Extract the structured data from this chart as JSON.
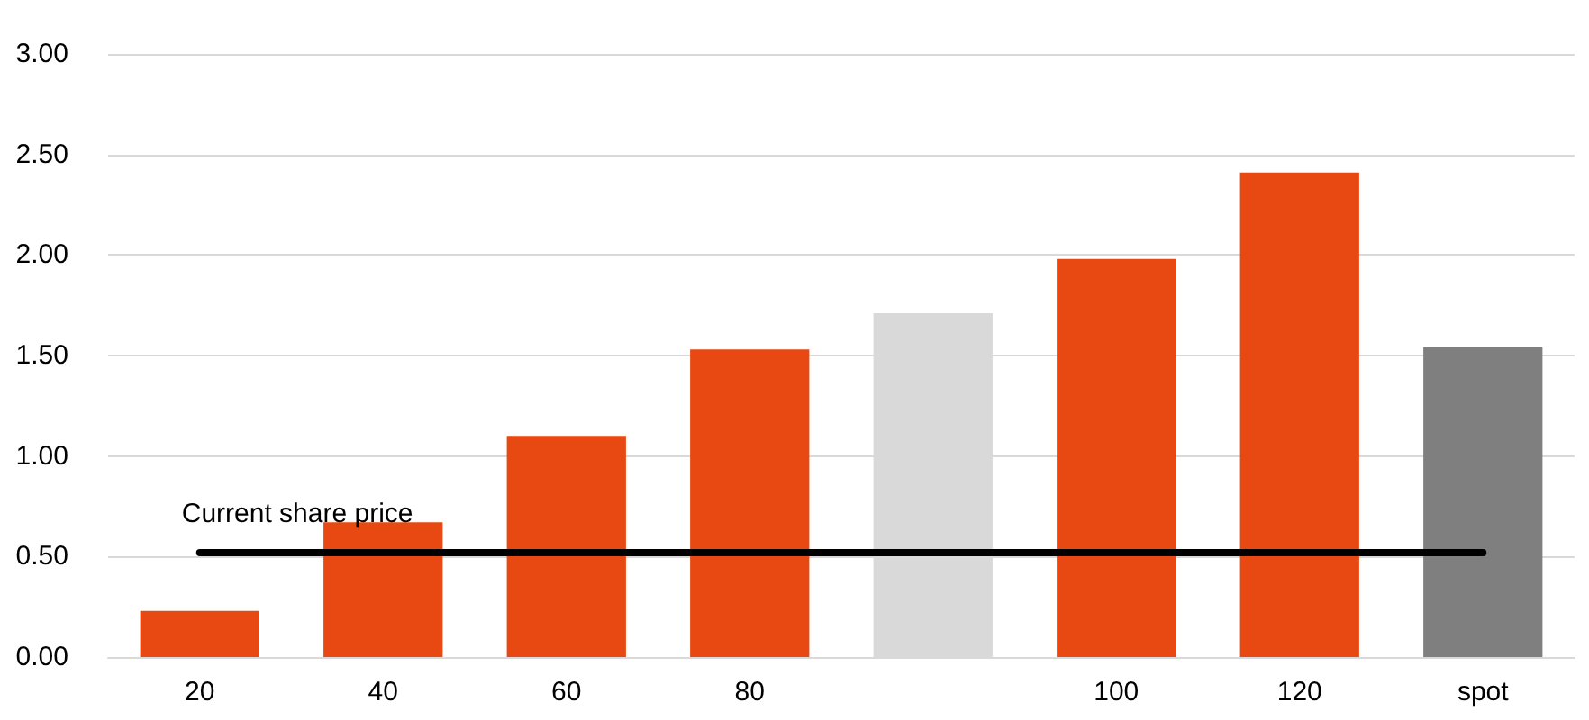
{
  "chart_data": {
    "type": "bar",
    "categories": [
      "20",
      "40",
      "60",
      "80",
      null,
      "100",
      "120",
      "spot"
    ],
    "values": [
      0.23,
      0.67,
      1.1,
      1.53,
      1.71,
      1.98,
      2.41,
      1.54
    ],
    "colors": [
      "#e84811",
      "#e84811",
      "#e84811",
      "#e84811",
      "#d9d9d9",
      "#e84811",
      "#e84811",
      "#7f7f7f"
    ],
    "ylim": [
      0,
      3
    ],
    "yticks": [
      {
        "value": 0,
        "label": "0.00"
      },
      {
        "value": 0.5,
        "label": "0.50"
      },
      {
        "value": 1,
        "label": "1.00"
      },
      {
        "value": 1.5,
        "label": "1.50"
      },
      {
        "value": 2,
        "label": "2.00"
      },
      {
        "value": 2.5,
        "label": "2.50"
      },
      {
        "value": 3,
        "label": "3.00"
      }
    ],
    "grid": "y",
    "ref_lines": [
      {
        "axis": "y",
        "value": 0.52,
        "label": "Current share price",
        "color": "#000000"
      }
    ]
  }
}
